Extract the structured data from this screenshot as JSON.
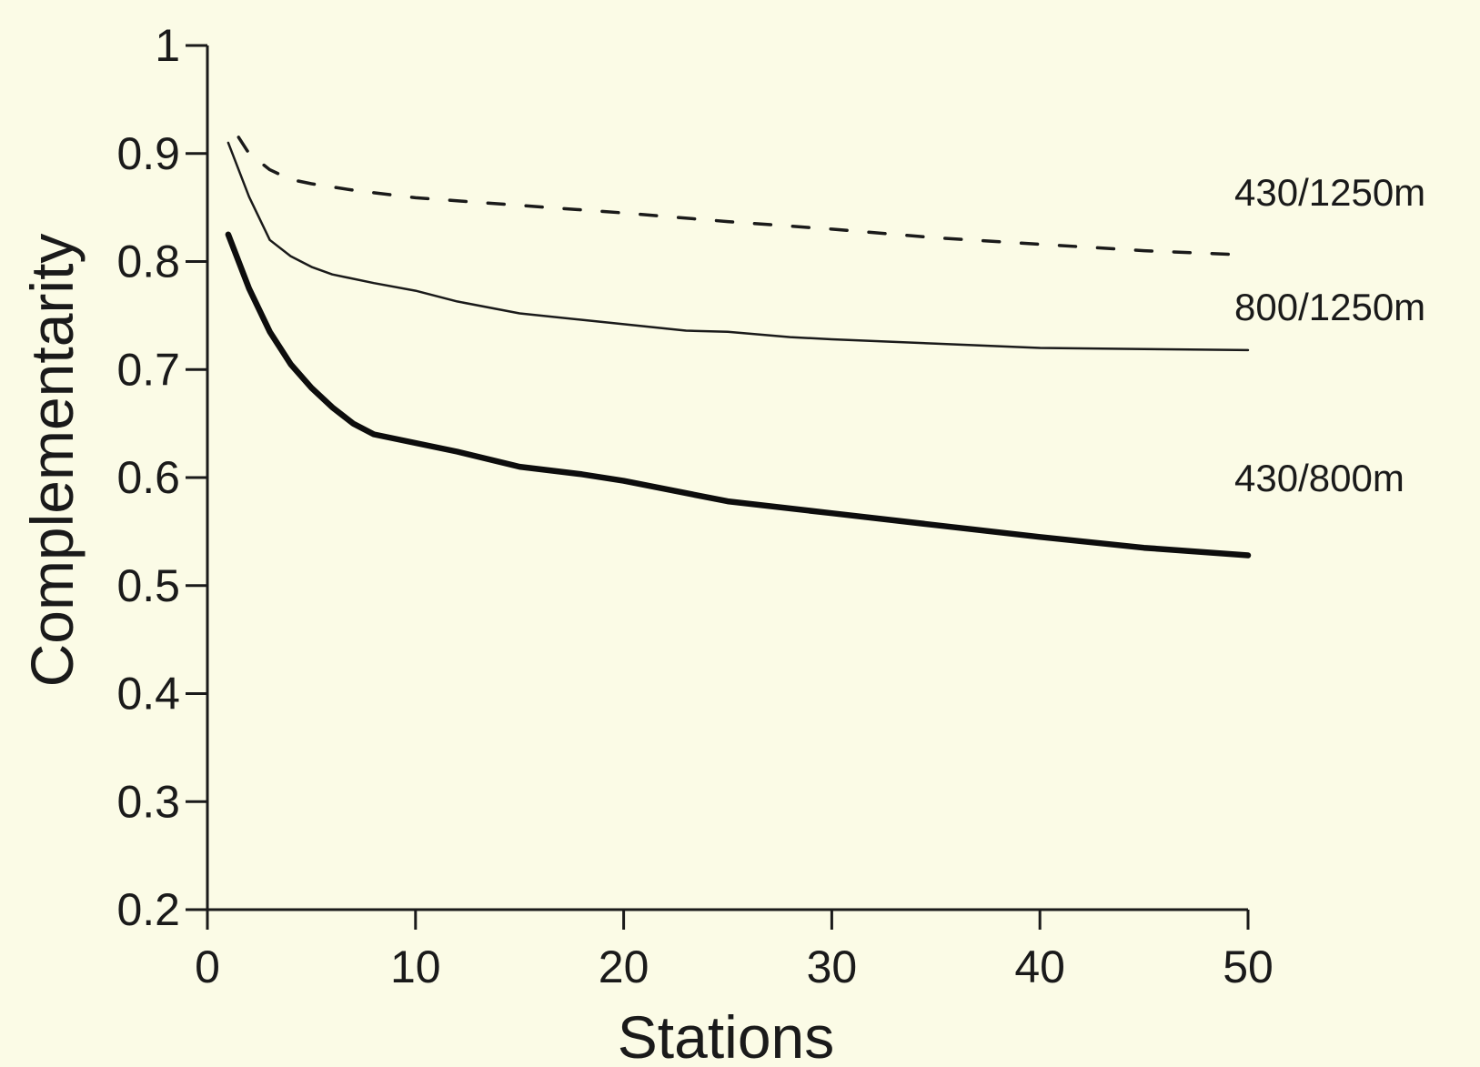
{
  "chart_data": {
    "type": "line",
    "title": "",
    "xlabel": "Stations",
    "ylabel": "Complementarity",
    "xlim": [
      0,
      50
    ],
    "ylim": [
      0.2,
      1.0
    ],
    "xticks": [
      0,
      10,
      20,
      30,
      40,
      50
    ],
    "xtick_labels": [
      "0",
      "10",
      "20",
      "30",
      "40",
      "50"
    ],
    "yticks": [
      0.2,
      0.3,
      0.4,
      0.5,
      0.6,
      0.7,
      0.8,
      0.9,
      1.0
    ],
    "ytick_labels": [
      "0.2",
      "0.3",
      "0.4",
      "0.5",
      "0.6",
      "0.7",
      "0.8",
      "0.9",
      "1"
    ],
    "grid": false,
    "legend": "none",
    "series": [
      {
        "name": "430/1250m",
        "style": "dashed",
        "color": "#1a1a1a",
        "x": [
          1.5,
          2,
          3,
          4,
          5,
          7,
          10,
          15,
          20,
          25,
          30,
          35,
          40,
          45,
          50
        ],
        "y": [
          0.915,
          0.9,
          0.885,
          0.876,
          0.872,
          0.866,
          0.859,
          0.852,
          0.845,
          0.837,
          0.83,
          0.822,
          0.816,
          0.81,
          0.806
        ]
      },
      {
        "name": "800/1250m",
        "style": "thin",
        "color": "#1a1a1a",
        "x": [
          1,
          2,
          3,
          4,
          5,
          6,
          8,
          10,
          12,
          15,
          18,
          20,
          23,
          25,
          28,
          30,
          35,
          40,
          45,
          50
        ],
        "y": [
          0.91,
          0.86,
          0.82,
          0.805,
          0.795,
          0.788,
          0.78,
          0.773,
          0.763,
          0.752,
          0.746,
          0.742,
          0.736,
          0.735,
          0.73,
          0.728,
          0.724,
          0.72,
          0.719,
          0.718
        ]
      },
      {
        "name": "430/800m",
        "style": "thick",
        "color": "#0d0d0d",
        "x": [
          1,
          2,
          3,
          4,
          5,
          6,
          7,
          8,
          10,
          12,
          15,
          18,
          20,
          25,
          30,
          35,
          40,
          45,
          50
        ],
        "y": [
          0.825,
          0.775,
          0.735,
          0.705,
          0.683,
          0.665,
          0.65,
          0.64,
          0.632,
          0.624,
          0.61,
          0.603,
          0.597,
          0.578,
          0.567,
          0.556,
          0.545,
          0.535,
          0.528
        ]
      }
    ]
  }
}
